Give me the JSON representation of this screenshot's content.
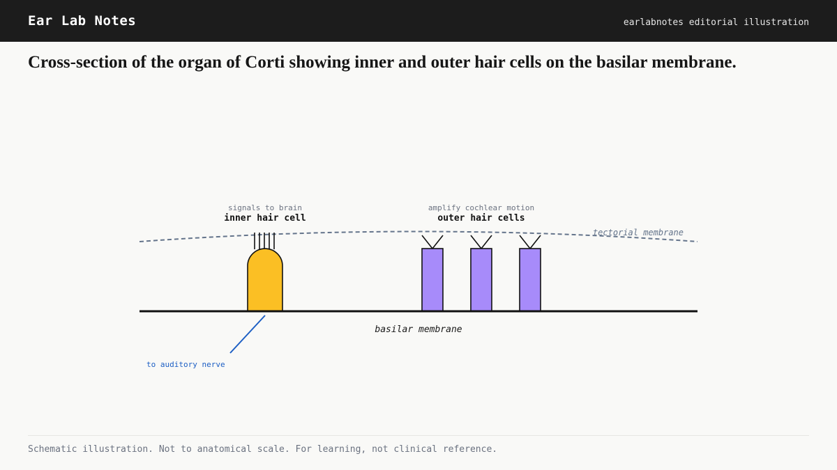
{
  "header": {
    "brand": "Ear Lab Notes",
    "credit": "earlabnotes editorial illustration"
  },
  "caption": "Cross-section of the organ of Corti showing inner and outer hair cells on the basilar membrane.",
  "diagram": {
    "inner_hair_cell": {
      "note": "signals to brain",
      "label": "inner hair cell",
      "color": "#fbbf24"
    },
    "outer_hair_cells": {
      "note": "amplify cochlear motion",
      "label": "outer hair cells",
      "color": "#a78bfa",
      "count": 3
    },
    "tectorial_membrane_label": "tectorial membrane",
    "basilar_membrane_label": "basilar membrane",
    "nerve_label": "to auditory nerve",
    "nerve_color": "#1d5fc4",
    "membrane_color": "#64748b"
  },
  "footer": {
    "disclaimer": "Schematic illustration. Not to anatomical scale. For learning, not clinical reference."
  }
}
